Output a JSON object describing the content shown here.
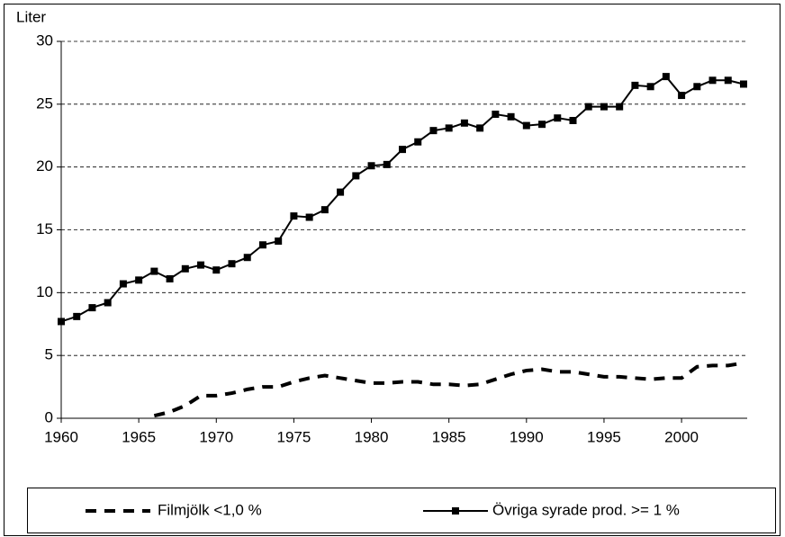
{
  "chart_data": {
    "type": "line",
    "y_label": "Liter",
    "x": [
      1960,
      1961,
      1962,
      1963,
      1964,
      1965,
      1966,
      1967,
      1968,
      1969,
      1970,
      1971,
      1972,
      1973,
      1974,
      1975,
      1976,
      1977,
      1978,
      1979,
      1980,
      1981,
      1982,
      1983,
      1984,
      1985,
      1986,
      1987,
      1988,
      1989,
      1990,
      1991,
      1992,
      1993,
      1994,
      1995,
      1996,
      1997,
      1998,
      1999,
      2000,
      2001,
      2002,
      2003,
      2004
    ],
    "series": [
      {
        "name": "Filmjölk <1,0 %",
        "color": "#000000",
        "dashed": true,
        "values": [
          null,
          null,
          null,
          null,
          null,
          null,
          0.2,
          0.5,
          1.0,
          1.8,
          1.8,
          2.0,
          2.3,
          2.5,
          2.5,
          2.9,
          3.2,
          3.4,
          3.2,
          3.0,
          2.8,
          2.8,
          2.9,
          2.9,
          2.7,
          2.7,
          2.6,
          2.7,
          3.1,
          3.5,
          3.8,
          3.9,
          3.7,
          3.7,
          3.5,
          3.3,
          3.3,
          3.2,
          3.1,
          3.2,
          3.2,
          4.1,
          4.2,
          4.2,
          4.4
        ]
      },
      {
        "name": "Övriga syrade prod. >= 1 %",
        "color": "#000000",
        "marker": "square",
        "values": [
          7.7,
          8.1,
          8.8,
          9.2,
          10.7,
          11.0,
          11.7,
          11.1,
          11.9,
          12.2,
          11.8,
          12.3,
          12.8,
          13.8,
          14.1,
          16.1,
          16.0,
          16.6,
          18.0,
          19.3,
          20.1,
          20.2,
          21.4,
          22.0,
          22.9,
          23.1,
          23.5,
          23.1,
          24.2,
          24.0,
          23.3,
          23.4,
          23.9,
          23.7,
          24.8,
          24.8,
          24.8,
          26.5,
          26.4,
          27.2,
          25.7,
          26.4,
          26.9,
          26.9,
          26.6
        ]
      }
    ],
    "xlim": [
      1960,
      2004
    ],
    "xticks": [
      1960,
      1965,
      1970,
      1975,
      1980,
      1985,
      1990,
      1995,
      2000
    ],
    "ylim": [
      0,
      30
    ],
    "yticks": [
      0,
      5,
      10,
      15,
      20,
      25,
      30
    ],
    "grid": true,
    "legend": "bottom"
  }
}
